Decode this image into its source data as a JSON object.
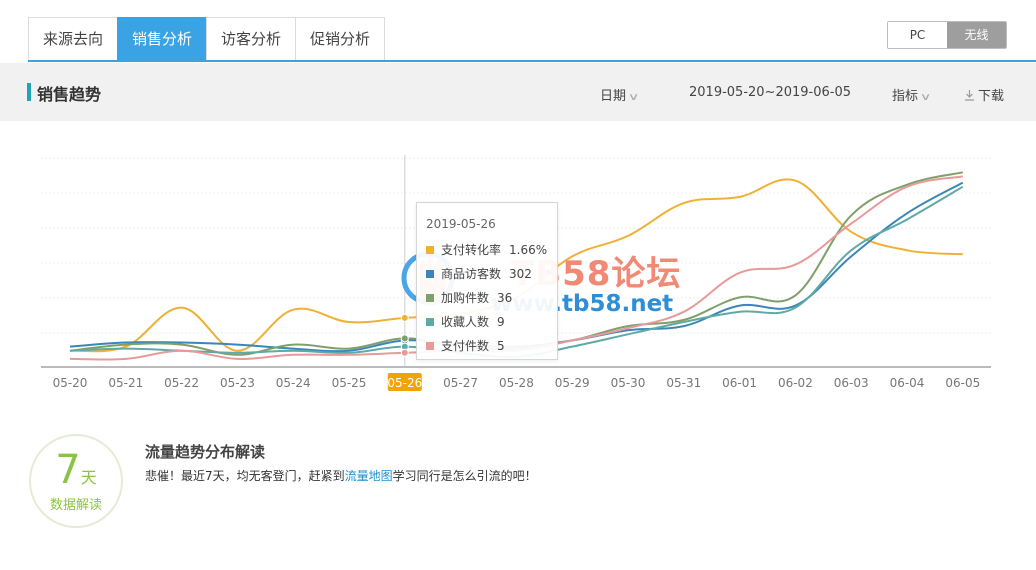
{
  "tabs": [
    {
      "label": "来源去向",
      "active": false
    },
    {
      "label": "销售分析",
      "active": true
    },
    {
      "label": "访客分析",
      "active": false
    },
    {
      "label": "促销分析",
      "active": false
    }
  ],
  "device_toggle": {
    "pc": "PC",
    "wireless": "无线",
    "selected": "无线"
  },
  "header": {
    "title": "销售趋势",
    "date_label": "日期",
    "date_range": "2019-05-20~2019-06-05",
    "metric_label": "指标",
    "download_label": "下载"
  },
  "colors": {
    "accent": "#3aa3e3",
    "title_bar": "#21a3ba",
    "highlight_tick": "#f0a30a",
    "green_text": "#8bc34a"
  },
  "chart_data": {
    "type": "line",
    "categories": [
      "05-20",
      "05-21",
      "05-22",
      "05-23",
      "05-24",
      "05-25",
      "05-26",
      "05-27",
      "05-28",
      "05-29",
      "05-30",
      "05-31",
      "06-01",
      "06-02",
      "06-03",
      "06-04",
      "06-05"
    ],
    "highlighted_category": "05-26",
    "grid": true,
    "legend": "none",
    "y_scale": "independent per series, unlabeled",
    "series": [
      {
        "name": "支付转化率",
        "color": "#eeb135",
        "values": [
          0.06,
          0.08,
          0.27,
          0.06,
          0.26,
          0.2,
          0.22,
          0.24,
          0.32,
          0.52,
          0.62,
          0.78,
          0.81,
          0.89,
          0.64,
          0.55,
          0.53
        ]
      },
      {
        "name": "商品访客数",
        "color": "#3b86b8",
        "values": [
          0.08,
          0.1,
          0.1,
          0.09,
          0.07,
          0.06,
          0.11,
          0.09,
          0.08,
          0.11,
          0.16,
          0.18,
          0.28,
          0.28,
          0.52,
          0.73,
          0.88
        ]
      },
      {
        "name": "加购件数",
        "color": "#7fa06b",
        "values": [
          0.06,
          0.09,
          0.09,
          0.04,
          0.09,
          0.07,
          0.12,
          0.08,
          0.07,
          0.11,
          0.18,
          0.21,
          0.32,
          0.33,
          0.72,
          0.87,
          0.93
        ]
      },
      {
        "name": "收藏人数",
        "color": "#5fa9a6",
        "values": [
          0.06,
          0.07,
          0.06,
          0.05,
          0.06,
          0.05,
          0.08,
          0.05,
          0.03,
          0.08,
          0.14,
          0.2,
          0.25,
          0.27,
          0.55,
          0.7,
          0.86
        ]
      },
      {
        "name": "支付件数",
        "color": "#e8999a",
        "values": [
          0.02,
          0.02,
          0.06,
          0.02,
          0.04,
          0.04,
          0.05,
          0.06,
          0.06,
          0.11,
          0.17,
          0.25,
          0.44,
          0.48,
          0.68,
          0.86,
          0.91
        ]
      }
    ]
  },
  "tooltip": {
    "date": "2019-05-26",
    "rows": [
      {
        "label": "支付转化率",
        "value": "1.66%",
        "color": "#eeb135"
      },
      {
        "label": "商品访客数",
        "value": "302",
        "color": "#3b86b8"
      },
      {
        "label": "加购件数",
        "value": "36",
        "color": "#7fa06b"
      },
      {
        "label": "收藏人数",
        "value": "9",
        "color": "#5fa9a6"
      },
      {
        "label": "支付件数",
        "value": "5",
        "color": "#e8999a"
      }
    ]
  },
  "watermark": {
    "line1": "TB58论坛",
    "line2": "www.tb58.net"
  },
  "analysis": {
    "days_number": "7",
    "days_unit": "天",
    "circle_label": "数据解读",
    "title": "流量趋势分布解读",
    "text_before": "悲催！最近7天，均无客登门，赶紧到",
    "link": "流量地图",
    "text_after": "学习同行是怎么引流的吧！"
  }
}
